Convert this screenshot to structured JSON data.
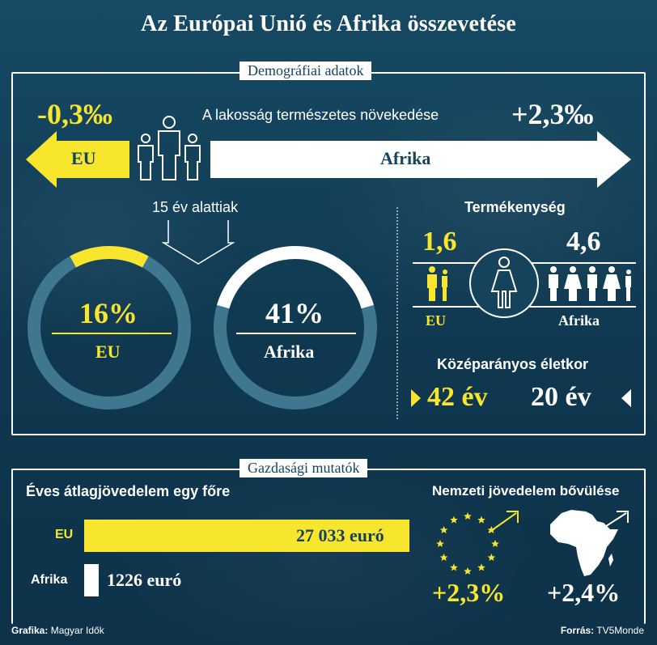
{
  "title": "Az Európai Unió és Afrika összevetése",
  "sections": {
    "demographic": "Demográfiai adatok",
    "economic": "Gazdasági mutatók"
  },
  "growth": {
    "label": "A lakosság természetes növekedése",
    "eu_value": "-0,3‰",
    "africa_value": "+2,3‰",
    "eu_arrow": "EU",
    "africa_arrow": "Afrika"
  },
  "under15": {
    "label": "15 év alattiak",
    "eu_pct": "16%",
    "eu_name": "EU",
    "africa_pct": "41%",
    "africa_name": "Afrika"
  },
  "fertility": {
    "label": "Termékenység",
    "eu_value": "1,6",
    "africa_value": "4,6",
    "eu_name": "EU",
    "africa_name": "Afrika"
  },
  "median_age": {
    "label": "Középarányos életkor",
    "eu_value": "42 év",
    "africa_value": "20 év"
  },
  "income": {
    "label": "Éves átlagjövedelem egy főre",
    "eu_name": "EU",
    "eu_value": "27 033 euró",
    "africa_name": "Afrika",
    "africa_value": "1226 euró"
  },
  "national_income": {
    "label": "Nemzeti jövedelem bővülése",
    "eu_value": "+2,3%",
    "africa_value": "+2,4%"
  },
  "footer": {
    "credit_label": "Grafika:",
    "credit_value": "Magyar Idők",
    "source_label": "Forrás:",
    "source_value": "TV5Monde"
  },
  "colors": {
    "background": "#15435c",
    "eu_yellow": "#f7e52e",
    "white": "#ffffff",
    "ring_track": "#3f7791"
  },
  "chart_data": [
    {
      "type": "bar",
      "title": "A lakosság természetes növekedése",
      "categories": [
        "EU",
        "Afrika"
      ],
      "values": [
        -0.3,
        2.3
      ],
      "unit": "‰"
    },
    {
      "type": "pie",
      "title": "15 év alattiak",
      "categories": [
        "EU",
        "Afrika"
      ],
      "values": [
        16,
        41
      ],
      "unit": "%"
    },
    {
      "type": "bar",
      "title": "Termékenység",
      "categories": [
        "EU",
        "Afrika"
      ],
      "values": [
        1.6,
        4.6
      ]
    },
    {
      "type": "bar",
      "title": "Középarányos életkor",
      "categories": [
        "EU",
        "Afrika"
      ],
      "values": [
        42,
        20
      ],
      "unit": "év"
    },
    {
      "type": "bar",
      "title": "Éves átlagjövedelem egy főre",
      "categories": [
        "EU",
        "Afrika"
      ],
      "values": [
        27033,
        1226
      ],
      "unit": "euró"
    },
    {
      "type": "bar",
      "title": "Nemzeti jövedelem bővülése",
      "categories": [
        "EU",
        "Afrika"
      ],
      "values": [
        2.3,
        2.4
      ],
      "unit": "%"
    }
  ]
}
